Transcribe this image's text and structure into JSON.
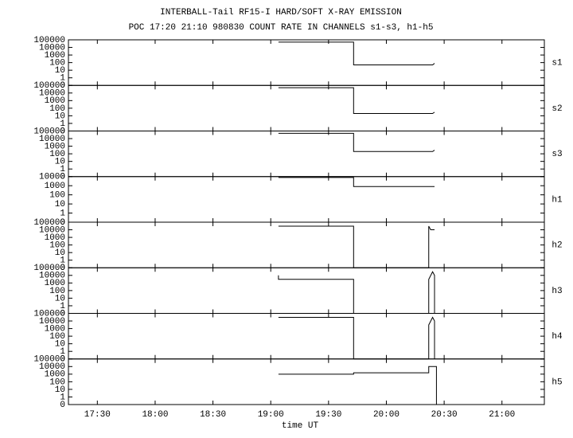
{
  "chart_data": {
    "type": "line",
    "title": "INTERBALL-Tail RF15-I HARD/SOFT X-RAY EMISSION",
    "subtitle": "POC 17:20 21:10 980830  COUNT RATE IN CHANNELS s1-s3, h1-h5",
    "xlabel": "time UT",
    "xlim": [
      1035,
      1282
    ],
    "xticks": [
      {
        "value": 1050,
        "label": "17:30"
      },
      {
        "value": 1080,
        "label": "18:00"
      },
      {
        "value": 1110,
        "label": "18:30"
      },
      {
        "value": 1140,
        "label": "19:00"
      },
      {
        "value": 1170,
        "label": "19:30"
      },
      {
        "value": 1200,
        "label": "20:00"
      },
      {
        "value": 1230,
        "label": "20:30"
      },
      {
        "value": 1260,
        "label": "21:00"
      }
    ],
    "ylog": true,
    "color": "#000000",
    "panels": [
      {
        "name": "s1",
        "ylim": [
          0.1,
          100000
        ],
        "yticks": [
          {
            "value": 0.1,
            "label": "0"
          },
          1,
          10,
          100,
          1000,
          10000,
          100000
        ],
        "x": [
          1144,
          1183,
          1183,
          1224,
          1225
        ],
        "values": [
          50000,
          50000,
          50,
          50,
          80
        ]
      },
      {
        "name": "s2",
        "ylim": [
          0.1,
          100000
        ],
        "yticks": [
          {
            "value": 0.1,
            "label": "0"
          },
          1,
          10,
          100,
          1000,
          10000,
          100000
        ],
        "x": [
          1144,
          1183,
          1183,
          1224,
          1225
        ],
        "values": [
          50000,
          50000,
          20,
          20,
          30
        ]
      },
      {
        "name": "s3",
        "ylim": [
          0.1,
          100000
        ],
        "yticks": [
          {
            "value": 0.1,
            "label": "0"
          },
          1,
          10,
          100,
          1000,
          10000,
          100000
        ],
        "x": [
          1144,
          1183,
          1183,
          1224,
          1225
        ],
        "values": [
          50000,
          50000,
          200,
          200,
          300
        ]
      },
      {
        "name": "h1",
        "ylim": [
          0.1,
          10000
        ],
        "yticks": [
          {
            "value": 0.1,
            "label": "0"
          },
          1,
          10,
          100,
          1000,
          10000
        ],
        "x": [
          1144,
          1183,
          1183,
          1225
        ],
        "values": [
          8000,
          8000,
          800,
          800
        ]
      },
      {
        "name": "h2",
        "ylim": [
          0.1,
          100000
        ],
        "yticks": [
          {
            "value": 0.1,
            "label": "0"
          },
          1,
          10,
          100,
          1000,
          10000,
          100000
        ],
        "x": [
          1144,
          1183,
          1183,
          1222,
          1222,
          1223,
          1225
        ],
        "values": [
          30000,
          30000,
          0.1,
          0.1,
          30000,
          10000,
          10000
        ]
      },
      {
        "name": "h3",
        "ylim": [
          0.1,
          100000
        ],
        "yticks": [
          {
            "value": 0.1,
            "label": "0"
          },
          1,
          10,
          100,
          1000,
          10000,
          100000
        ],
        "x": [
          1144,
          1144,
          1183,
          1183,
          1222,
          1222,
          1224,
          1225,
          1225
        ],
        "values": [
          10000,
          3000,
          3000,
          0.1,
          0.1,
          3000,
          30000,
          10000,
          0.1
        ]
      },
      {
        "name": "h4",
        "ylim": [
          0.1,
          100000
        ],
        "yticks": [
          {
            "value": 0.1,
            "label": "0"
          },
          1,
          10,
          100,
          1000,
          10000,
          100000
        ],
        "x": [
          1144,
          1183,
          1183,
          1222,
          1222,
          1224,
          1225,
          1225
        ],
        "values": [
          30000,
          30000,
          0.1,
          0.1,
          3000,
          30000,
          10000,
          0.1
        ]
      },
      {
        "name": "h5",
        "ylim": [
          0.1,
          100000
        ],
        "yticks": [
          {
            "value": 0.1,
            "label": "0"
          },
          1,
          10,
          100,
          1000,
          10000,
          100000
        ],
        "x": [
          1144,
          1183,
          1183,
          1222,
          1222,
          1226,
          1226
        ],
        "values": [
          1000,
          1000,
          1500,
          1500,
          10000,
          10000,
          0.1
        ]
      }
    ]
  }
}
